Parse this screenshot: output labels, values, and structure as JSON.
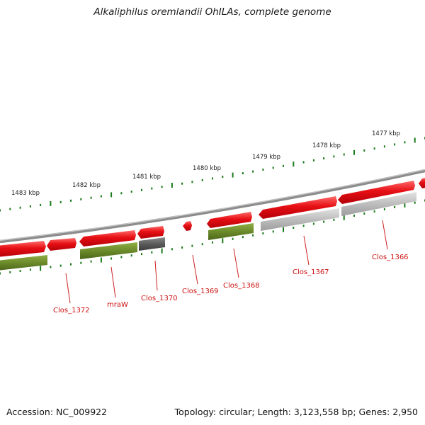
{
  "title": "Alkaliphilus oremlandii OhILAs, complete genome",
  "footer": {
    "accession": "Accession: NC_009922",
    "summary": "Topology: circular; Length: 3,123,558 bp; Genes: 2,950"
  },
  "colors": {
    "backbone": "#8c8c8c",
    "gene_red": "#e8101a",
    "gene_green": "#6b8a2a",
    "gene_dark_gray": "#5a5a5a",
    "gene_light_gray": "#bcbcbc",
    "tick": "#1a7a1a",
    "label_line": "#cc2222",
    "label_text": "#cc1111"
  },
  "kbp_labels": [
    "1483 kbp",
    "1482 kbp",
    "1481 kbp",
    "1480 kbp",
    "1479 kbp",
    "1478 kbp",
    "1477 kbp"
  ],
  "genes": [
    {
      "name": "Clos_1372"
    },
    {
      "name": "mraW"
    },
    {
      "name": "Clos_1370"
    },
    {
      "name": "Clos_1369"
    },
    {
      "name": "Clos_1368"
    },
    {
      "name": "Clos_1367"
    },
    {
      "name": "Clos_1366"
    }
  ]
}
